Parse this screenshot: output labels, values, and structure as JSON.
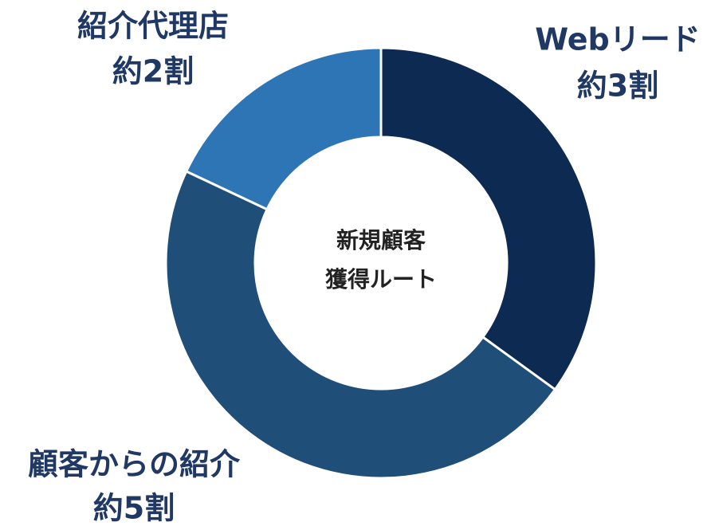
{
  "chart_data": {
    "type": "donut",
    "center_label": [
      "新規顧客",
      "獲得ルート"
    ],
    "categories": [
      "Webリード",
      "顧客からの紹介",
      "紹介代理店"
    ],
    "values": [
      35,
      47,
      18
    ],
    "value_labels": [
      "約3割",
      "約5割",
      "約2割"
    ],
    "colors": [
      "#0d2a52",
      "#1f4e79",
      "#2e75b6"
    ],
    "label_color": "#1f3864"
  }
}
